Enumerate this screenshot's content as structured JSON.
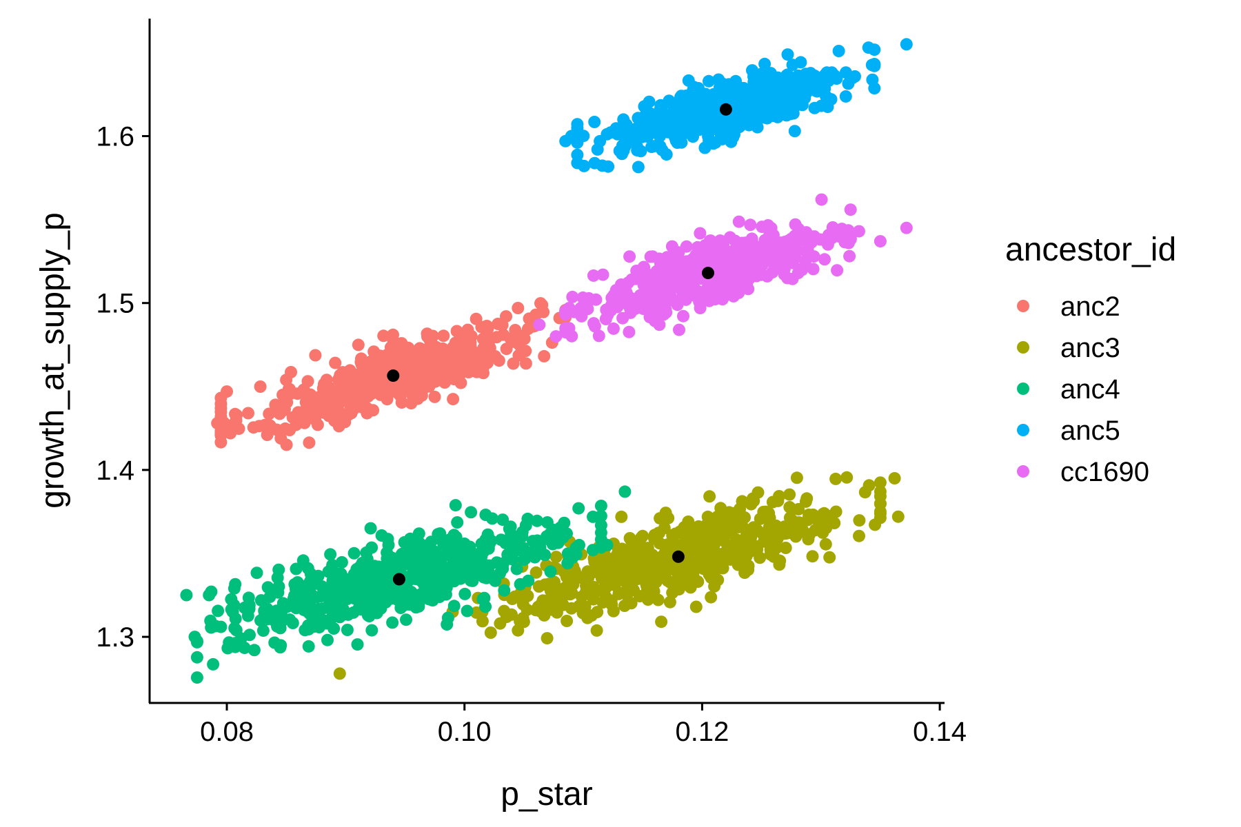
{
  "chart_data": {
    "type": "scatter",
    "xlabel": "p_star",
    "ylabel": "growth_at_supply_p",
    "xlim": [
      0.0735,
      0.1404
    ],
    "ylim": [
      1.2604,
      1.6704
    ],
    "x_ticks": [
      0.08,
      0.1,
      0.12,
      0.14
    ],
    "x_tick_labels": [
      "0.08",
      "0.10",
      "0.12",
      "0.14"
    ],
    "y_ticks": [
      1.3,
      1.4,
      1.5,
      1.6
    ],
    "y_tick_labels": [
      "1.3",
      "1.4",
      "1.5",
      "1.6"
    ],
    "grid": false,
    "legend": {
      "title": "ancestor_id",
      "position": "right"
    },
    "series": [
      {
        "name": "anc2",
        "color": "#F8766D",
        "cluster": {
          "x_range": [
            0.0795,
            0.1085
          ],
          "center": [
            0.094,
            1.4565
          ],
          "slope": 2.2,
          "spread": 0.0095,
          "n": 480
        },
        "outliers": [
          [
            0.08,
            1.447
          ],
          [
            0.0795,
            1.437
          ],
          [
            0.0792,
            1.428
          ],
          [
            0.0803,
            1.422
          ],
          [
            0.0818,
            1.434
          ],
          [
            0.0834,
            1.421
          ],
          [
            0.1045,
            1.497
          ],
          [
            0.1035,
            1.492
          ],
          [
            0.106,
            1.493
          ],
          [
            0.1058,
            1.486
          ],
          [
            0.108,
            1.491
          ]
        ]
      },
      {
        "name": "anc3",
        "color": "#A3A500",
        "cluster": {
          "x_range": [
            0.1035,
            0.1375
          ],
          "center": [
            0.118,
            1.348
          ],
          "slope": 1.95,
          "spread": 0.011,
          "n": 520
        },
        "outliers": [
          [
            0.0895,
            1.278
          ],
          [
            0.099,
            1.315
          ],
          [
            0.1015,
            1.315
          ],
          [
            0.103,
            1.308
          ],
          [
            0.105,
            1.309
          ],
          [
            0.106,
            1.316
          ],
          [
            0.1195,
            1.318
          ],
          [
            0.1365,
            1.372
          ],
          [
            0.135,
            1.387
          ],
          [
            0.1362,
            1.395
          ]
        ]
      },
      {
        "name": "anc4",
        "color": "#00BF7D",
        "cluster": {
          "x_range": [
            0.0765,
            0.1105
          ],
          "center": [
            0.0945,
            1.3345
          ],
          "slope": 1.65,
          "spread": 0.011,
          "n": 560
        },
        "outliers": [
          [
            0.0766,
            1.325
          ],
          [
            0.0773,
            1.3
          ],
          [
            0.0785,
            1.325
          ],
          [
            0.0795,
            1.306
          ],
          [
            0.0805,
            1.315
          ],
          [
            0.0808,
            1.304
          ],
          [
            0.0812,
            1.299
          ],
          [
            0.1096,
            1.377
          ],
          [
            0.1135,
            1.387
          ],
          [
            0.1108,
            1.352
          ],
          [
            0.112,
            1.355
          ],
          [
            0.089,
            1.305
          ]
        ]
      },
      {
        "name": "anc5",
        "color": "#00B0F6",
        "cluster": {
          "x_range": [
            0.1095,
            0.1345
          ],
          "center": [
            0.122,
            1.616
          ],
          "slope": 1.85,
          "spread": 0.009,
          "n": 480
        },
        "outliers": [
          [
            0.1085,
            1.597
          ],
          [
            0.109,
            1.6
          ],
          [
            0.1112,
            1.592
          ],
          [
            0.117,
            1.589
          ],
          [
            0.134,
            1.653
          ],
          [
            0.1372,
            1.655
          ],
          [
            0.1315,
            1.651
          ],
          [
            0.1278,
            1.603
          ]
        ]
      },
      {
        "name": "cc1690",
        "color": "#E76BF3",
        "cluster": {
          "x_range": [
            0.1095,
            0.1335
          ],
          "center": [
            0.1205,
            1.518
          ],
          "slope": 2.0,
          "spread": 0.009,
          "n": 500
        },
        "outliers": [
          [
            0.1063,
            1.487
          ],
          [
            0.1077,
            1.48
          ],
          [
            0.1332,
            1.543
          ],
          [
            0.135,
            1.537
          ],
          [
            0.1372,
            1.545
          ],
          [
            0.11,
            1.503
          ],
          [
            0.1164,
            1.487
          ]
        ]
      }
    ],
    "means": {
      "color": "#000000",
      "points": [
        [
          0.094,
          1.4565
        ],
        [
          0.118,
          1.348
        ],
        [
          0.0945,
          1.3345
        ],
        [
          0.122,
          1.616
        ],
        [
          0.1205,
          1.518
        ]
      ]
    }
  }
}
